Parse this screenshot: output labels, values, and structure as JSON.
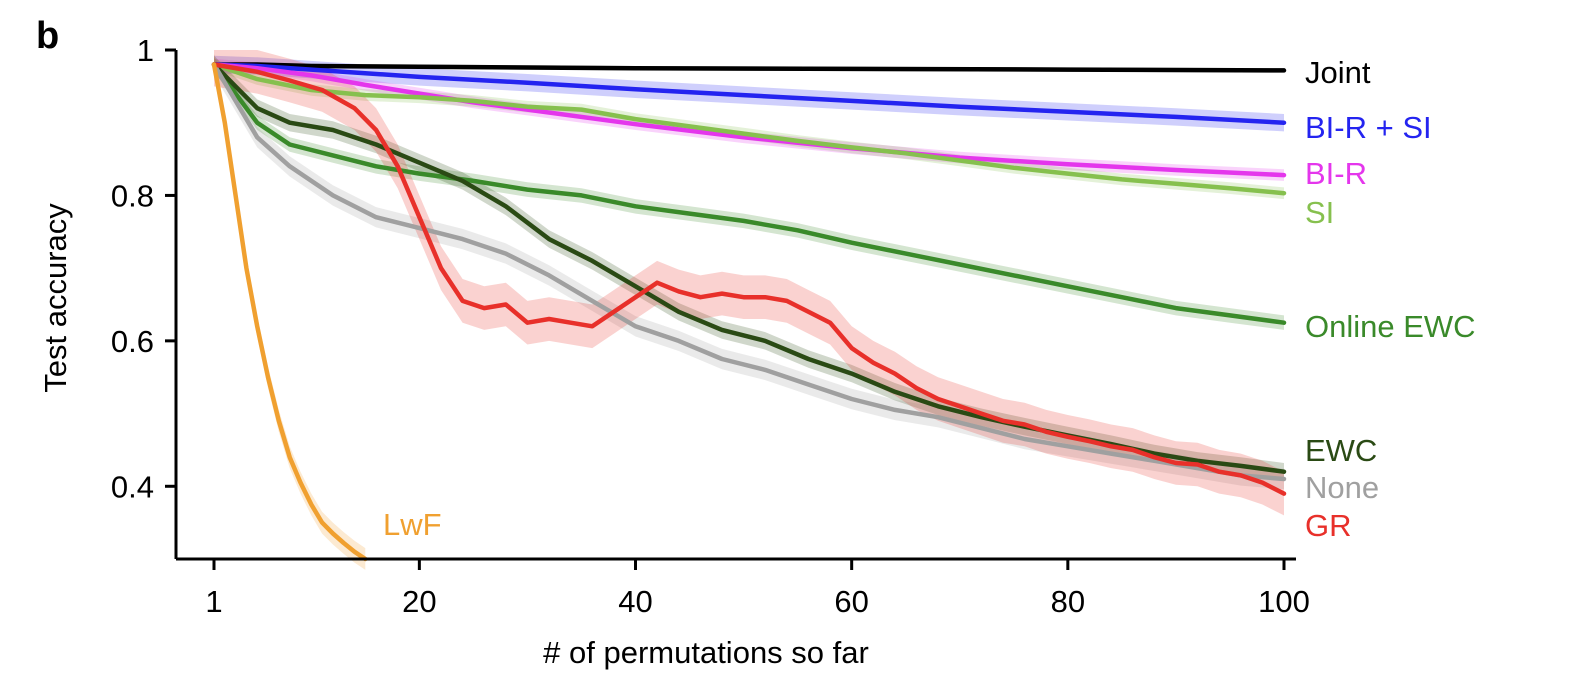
{
  "panel_label": "b",
  "chart_data": {
    "type": "line",
    "title": "",
    "xlabel": "# of permutations so far",
    "ylabel": "Test accuracy",
    "xlim": [
      -4,
      101
    ],
    "ylim": [
      0.3,
      1.0
    ],
    "xticks": [
      1,
      20,
      40,
      60,
      80,
      100
    ],
    "yticks": [
      0.4,
      0.6,
      0.8,
      1.0
    ],
    "ytick_labels": [
      "0.4",
      "0.6",
      "0.8",
      "1"
    ],
    "grid": false,
    "legend": "inline labels at right end of lines",
    "series": [
      {
        "name": "Joint",
        "color": "#000000",
        "band": 0.003,
        "points": [
          [
            1,
            0.98
          ],
          [
            5,
            0.98
          ],
          [
            10,
            0.978
          ],
          [
            20,
            0.977
          ],
          [
            40,
            0.975
          ],
          [
            60,
            0.974
          ],
          [
            80,
            0.973
          ],
          [
            100,
            0.972
          ]
        ]
      },
      {
        "name": "BI-R + SI",
        "color": "#2424f0",
        "band": 0.012,
        "points": [
          [
            1,
            0.98
          ],
          [
            5,
            0.978
          ],
          [
            10,
            0.973
          ],
          [
            20,
            0.963
          ],
          [
            30,
            0.955
          ],
          [
            40,
            0.946
          ],
          [
            50,
            0.938
          ],
          [
            60,
            0.93
          ],
          [
            70,
            0.922
          ],
          [
            80,
            0.915
          ],
          [
            90,
            0.908
          ],
          [
            100,
            0.9
          ]
        ]
      },
      {
        "name": "BI-R",
        "color": "#e436ec",
        "band": 0.008,
        "points": [
          [
            1,
            0.98
          ],
          [
            5,
            0.975
          ],
          [
            10,
            0.965
          ],
          [
            15,
            0.952
          ],
          [
            20,
            0.94
          ],
          [
            25,
            0.928
          ],
          [
            30,
            0.918
          ],
          [
            40,
            0.898
          ],
          [
            50,
            0.88
          ],
          [
            60,
            0.865
          ],
          [
            70,
            0.852
          ],
          [
            80,
            0.843
          ],
          [
            90,
            0.835
          ],
          [
            100,
            0.828
          ]
        ]
      },
      {
        "name": "SI",
        "color": "#86c04e",
        "band": 0.008,
        "points": [
          [
            1,
            0.98
          ],
          [
            5,
            0.96
          ],
          [
            10,
            0.945
          ],
          [
            15,
            0.938
          ],
          [
            20,
            0.935
          ],
          [
            25,
            0.93
          ],
          [
            30,
            0.922
          ],
          [
            35,
            0.918
          ],
          [
            40,
            0.905
          ],
          [
            45,
            0.895
          ],
          [
            50,
            0.885
          ],
          [
            55,
            0.875
          ],
          [
            60,
            0.866
          ],
          [
            65,
            0.858
          ],
          [
            70,
            0.848
          ],
          [
            75,
            0.838
          ],
          [
            80,
            0.83
          ],
          [
            85,
            0.822
          ],
          [
            90,
            0.816
          ],
          [
            95,
            0.81
          ],
          [
            100,
            0.803
          ]
        ]
      },
      {
        "name": "Online EWC",
        "color": "#3a8a2a",
        "band": 0.01,
        "points": [
          [
            1,
            0.98
          ],
          [
            3,
            0.94
          ],
          [
            5,
            0.9
          ],
          [
            8,
            0.87
          ],
          [
            12,
            0.855
          ],
          [
            16,
            0.84
          ],
          [
            20,
            0.83
          ],
          [
            25,
            0.82
          ],
          [
            30,
            0.808
          ],
          [
            35,
            0.8
          ],
          [
            40,
            0.785
          ],
          [
            45,
            0.775
          ],
          [
            50,
            0.765
          ],
          [
            55,
            0.752
          ],
          [
            60,
            0.735
          ],
          [
            65,
            0.72
          ],
          [
            70,
            0.705
          ],
          [
            75,
            0.69
          ],
          [
            80,
            0.675
          ],
          [
            85,
            0.66
          ],
          [
            90,
            0.645
          ],
          [
            95,
            0.635
          ],
          [
            100,
            0.625
          ]
        ]
      },
      {
        "name": "EWC",
        "color": "#2a4a14",
        "band": 0.012,
        "points": [
          [
            1,
            0.98
          ],
          [
            3,
            0.95
          ],
          [
            5,
            0.92
          ],
          [
            8,
            0.9
          ],
          [
            12,
            0.89
          ],
          [
            16,
            0.87
          ],
          [
            20,
            0.845
          ],
          [
            24,
            0.82
          ],
          [
            28,
            0.785
          ],
          [
            32,
            0.74
          ],
          [
            36,
            0.71
          ],
          [
            40,
            0.675
          ],
          [
            44,
            0.64
          ],
          [
            48,
            0.615
          ],
          [
            52,
            0.6
          ],
          [
            56,
            0.575
          ],
          [
            60,
            0.555
          ],
          [
            64,
            0.53
          ],
          [
            68,
            0.51
          ],
          [
            72,
            0.495
          ],
          [
            76,
            0.482
          ],
          [
            80,
            0.47
          ],
          [
            84,
            0.458
          ],
          [
            88,
            0.445
          ],
          [
            92,
            0.435
          ],
          [
            96,
            0.428
          ],
          [
            100,
            0.42
          ]
        ]
      },
      {
        "name": "None",
        "color": "#a0a0a0",
        "band": 0.014,
        "points": [
          [
            1,
            0.98
          ],
          [
            3,
            0.93
          ],
          [
            5,
            0.88
          ],
          [
            8,
            0.84
          ],
          [
            12,
            0.8
          ],
          [
            16,
            0.77
          ],
          [
            20,
            0.755
          ],
          [
            24,
            0.74
          ],
          [
            28,
            0.72
          ],
          [
            32,
            0.69
          ],
          [
            36,
            0.655
          ],
          [
            40,
            0.62
          ],
          [
            44,
            0.6
          ],
          [
            48,
            0.575
          ],
          [
            52,
            0.56
          ],
          [
            56,
            0.54
          ],
          [
            60,
            0.52
          ],
          [
            64,
            0.505
          ],
          [
            68,
            0.495
          ],
          [
            72,
            0.48
          ],
          [
            76,
            0.465
          ],
          [
            80,
            0.455
          ],
          [
            84,
            0.445
          ],
          [
            88,
            0.435
          ],
          [
            92,
            0.425
          ],
          [
            96,
            0.415
          ],
          [
            100,
            0.41
          ]
        ]
      },
      {
        "name": "GR",
        "color": "#e8302a",
        "band": 0.03,
        "points": [
          [
            1,
            0.98
          ],
          [
            5,
            0.97
          ],
          [
            8,
            0.958
          ],
          [
            11,
            0.945
          ],
          [
            14,
            0.92
          ],
          [
            16,
            0.89
          ],
          [
            18,
            0.84
          ],
          [
            20,
            0.77
          ],
          [
            22,
            0.7
          ],
          [
            24,
            0.655
          ],
          [
            26,
            0.645
          ],
          [
            28,
            0.65
          ],
          [
            30,
            0.625
          ],
          [
            32,
            0.63
          ],
          [
            34,
            0.625
          ],
          [
            36,
            0.62
          ],
          [
            38,
            0.64
          ],
          [
            40,
            0.66
          ],
          [
            42,
            0.68
          ],
          [
            44,
            0.668
          ],
          [
            46,
            0.66
          ],
          [
            48,
            0.665
          ],
          [
            50,
            0.66
          ],
          [
            52,
            0.66
          ],
          [
            54,
            0.655
          ],
          [
            56,
            0.64
          ],
          [
            58,
            0.625
          ],
          [
            60,
            0.59
          ],
          [
            62,
            0.57
          ],
          [
            64,
            0.555
          ],
          [
            66,
            0.535
          ],
          [
            68,
            0.52
          ],
          [
            70,
            0.51
          ],
          [
            72,
            0.5
          ],
          [
            74,
            0.49
          ],
          [
            76,
            0.485
          ],
          [
            78,
            0.475
          ],
          [
            80,
            0.468
          ],
          [
            82,
            0.462
          ],
          [
            84,
            0.455
          ],
          [
            86,
            0.45
          ],
          [
            88,
            0.44
          ],
          [
            90,
            0.432
          ],
          [
            92,
            0.43
          ],
          [
            94,
            0.42
          ],
          [
            96,
            0.415
          ],
          [
            98,
            0.405
          ],
          [
            100,
            0.39
          ]
        ]
      },
      {
        "name": "LwF",
        "color": "#f0a030",
        "band": 0.015,
        "points": [
          [
            1,
            0.98
          ],
          [
            2,
            0.9
          ],
          [
            3,
            0.8
          ],
          [
            4,
            0.7
          ],
          [
            5,
            0.62
          ],
          [
            6,
            0.55
          ],
          [
            7,
            0.49
          ],
          [
            8,
            0.44
          ],
          [
            9,
            0.405
          ],
          [
            10,
            0.375
          ],
          [
            11,
            0.35
          ],
          [
            12,
            0.335
          ],
          [
            13,
            0.322
          ],
          [
            14,
            0.31
          ],
          [
            15,
            0.3
          ]
        ]
      }
    ]
  }
}
